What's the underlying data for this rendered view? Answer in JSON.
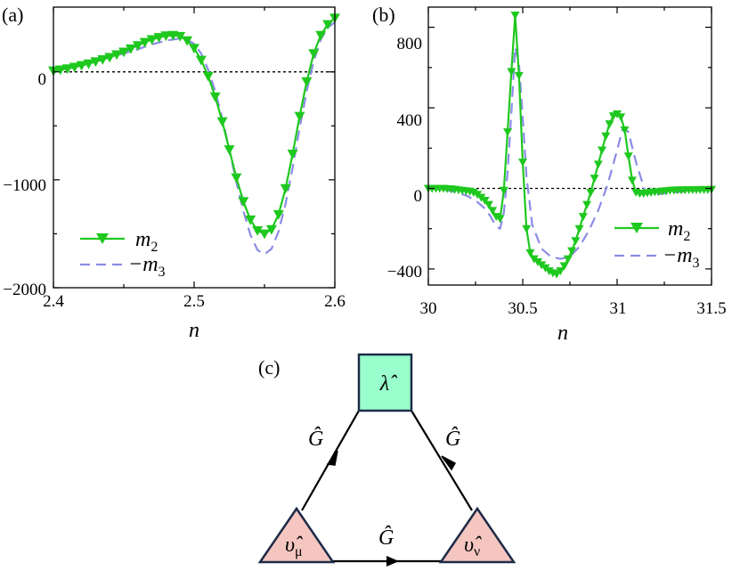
{
  "chart_data": [
    {
      "panel": "(a)",
      "type": "line",
      "xlabel": "n",
      "xlim": [
        2.4,
        2.6
      ],
      "ylim": [
        -2000,
        600
      ],
      "xticks": [
        "2.4",
        "2.5",
        "2.6"
      ],
      "yticks": [
        "0",
        "−1000",
        "−2000"
      ],
      "zero_line": "dotted",
      "legend_position": "bottom-left",
      "series": [
        {
          "name": "m",
          "name_sub": "2",
          "color": "#1ec81e",
          "style": "solid",
          "marker": "triangle-down",
          "x": [
            2.4,
            2.405,
            2.41,
            2.415,
            2.42,
            2.425,
            2.43,
            2.435,
            2.44,
            2.445,
            2.45,
            2.455,
            2.46,
            2.465,
            2.47,
            2.475,
            2.48,
            2.485,
            2.49,
            2.495,
            2.5,
            2.505,
            2.51,
            2.515,
            2.52,
            2.525,
            2.53,
            2.535,
            2.54,
            2.545,
            2.55,
            2.555,
            2.56,
            2.565,
            2.57,
            2.575,
            2.58,
            2.585,
            2.59,
            2.595,
            2.6
          ],
          "y": [
            10,
            20,
            30,
            45,
            60,
            75,
            95,
            115,
            135,
            160,
            185,
            215,
            245,
            275,
            300,
            320,
            335,
            340,
            330,
            290,
            220,
            110,
            -40,
            -230,
            -460,
            -720,
            -980,
            -1200,
            -1370,
            -1470,
            -1500,
            -1460,
            -1320,
            -1080,
            -760,
            -410,
            -90,
            170,
            340,
            440,
            500
          ]
        },
        {
          "name": "−m",
          "name_sub": "3",
          "color": "#8c8ce6",
          "style": "dashed",
          "x": [
            2.4,
            2.41,
            2.42,
            2.43,
            2.44,
            2.45,
            2.46,
            2.47,
            2.48,
            2.49,
            2.495,
            2.5,
            2.505,
            2.51,
            2.515,
            2.52,
            2.525,
            2.53,
            2.535,
            2.54,
            2.545,
            2.55,
            2.555,
            2.56,
            2.565,
            2.57,
            2.575,
            2.58,
            2.585,
            2.59,
            2.595,
            2.6
          ],
          "y": [
            35,
            55,
            80,
            105,
            135,
            170,
            210,
            255,
            290,
            310,
            300,
            260,
            170,
            20,
            -180,
            -430,
            -720,
            -1020,
            -1290,
            -1510,
            -1650,
            -1690,
            -1640,
            -1480,
            -1220,
            -890,
            -520,
            -180,
            100,
            300,
            410,
            460
          ]
        }
      ]
    },
    {
      "panel": "(b)",
      "type": "line",
      "xlabel": "n",
      "xlim": [
        30,
        31.5
      ],
      "ylim": [
        -480,
        900
      ],
      "xticks": [
        "30",
        "30.5",
        "31",
        "31.5"
      ],
      "yticks": [
        "800",
        "400",
        "0",
        "−400"
      ],
      "zero_line": "dotted",
      "legend_position": "bottom-right",
      "series": [
        {
          "name": "m",
          "name_sub": "2",
          "color": "#1ec81e",
          "style": "solid",
          "marker": "triangle-down",
          "x": [
            30.0,
            30.02,
            30.04,
            30.06,
            30.08,
            30.1,
            30.12,
            30.14,
            30.16,
            30.18,
            30.2,
            30.22,
            30.24,
            30.26,
            30.28,
            30.3,
            30.32,
            30.34,
            30.36,
            30.38,
            30.4,
            30.42,
            30.44,
            30.46,
            30.48,
            30.5,
            30.52,
            30.54,
            30.56,
            30.58,
            30.6,
            30.62,
            30.64,
            30.66,
            30.68,
            30.7,
            30.72,
            30.74,
            30.76,
            30.78,
            30.8,
            30.82,
            30.84,
            30.86,
            30.88,
            30.9,
            30.92,
            30.94,
            30.96,
            30.98,
            31.0,
            31.02,
            31.04,
            31.06,
            31.08,
            31.1,
            31.12,
            31.14,
            31.16,
            31.18,
            31.2,
            31.22,
            31.24,
            31.26,
            31.28,
            31.3,
            31.32,
            31.34,
            31.36,
            31.38,
            31.4,
            31.42,
            31.44,
            31.46,
            31.48,
            31.5
          ],
          "y": [
            0,
            0,
            0,
            0,
            0,
            -2,
            -3,
            -5,
            -8,
            -10,
            -12,
            -15,
            -20,
            -30,
            -45,
            -60,
            -80,
            -110,
            -140,
            -150,
            -10,
            280,
            580,
            860,
            560,
            130,
            -200,
            -320,
            -350,
            -365,
            -380,
            -395,
            -410,
            -420,
            -425,
            -410,
            -385,
            -350,
            -310,
            -260,
            -200,
            -140,
            -80,
            -20,
            50,
            120,
            190,
            260,
            320,
            360,
            370,
            355,
            290,
            160,
            40,
            -20,
            -25,
            -25,
            -22,
            -20,
            -18,
            -16,
            -14,
            -12,
            -10,
            -9,
            -8,
            -8,
            -8,
            -7,
            -7,
            -7,
            -6,
            -6,
            -6,
            -5
          ]
        },
        {
          "name": "−m",
          "name_sub": "3",
          "color": "#8c8ce6",
          "style": "dashed",
          "x": [
            30.0,
            30.05,
            30.1,
            30.15,
            30.2,
            30.25,
            30.3,
            30.33,
            30.36,
            30.38,
            30.4,
            30.42,
            30.44,
            30.46,
            30.48,
            30.5,
            30.52,
            30.55,
            30.6,
            30.65,
            30.7,
            30.75,
            30.8,
            30.85,
            30.9,
            30.95,
            31.0,
            31.03,
            31.06,
            31.1,
            31.15,
            31.2,
            31.3,
            31.4,
            31.5
          ],
          "y": [
            0,
            -3,
            -10,
            -20,
            -35,
            -60,
            -100,
            -140,
            -190,
            -200,
            -120,
            80,
            380,
            700,
            620,
            350,
            60,
            -180,
            -300,
            -340,
            -350,
            -340,
            -290,
            -210,
            -110,
            20,
            190,
            300,
            280,
            130,
            -20,
            -30,
            -20,
            -12,
            -8
          ]
        }
      ]
    }
  ],
  "diagram": {
    "panel_label": "(c)",
    "top_box_label": "λ̂",
    "left_triangle_label": "υ̂",
    "left_triangle_sub": "μ",
    "right_triangle_label": "υ̂",
    "right_triangle_sub": "ν",
    "edge_left_label": "Ĝ",
    "edge_right_label": "Ĝ",
    "edge_bottom_label": "Ĝ",
    "box_color": "#99ffcc",
    "triangle_color": "#f5c6c0",
    "outline_color": "#1e2b48"
  }
}
